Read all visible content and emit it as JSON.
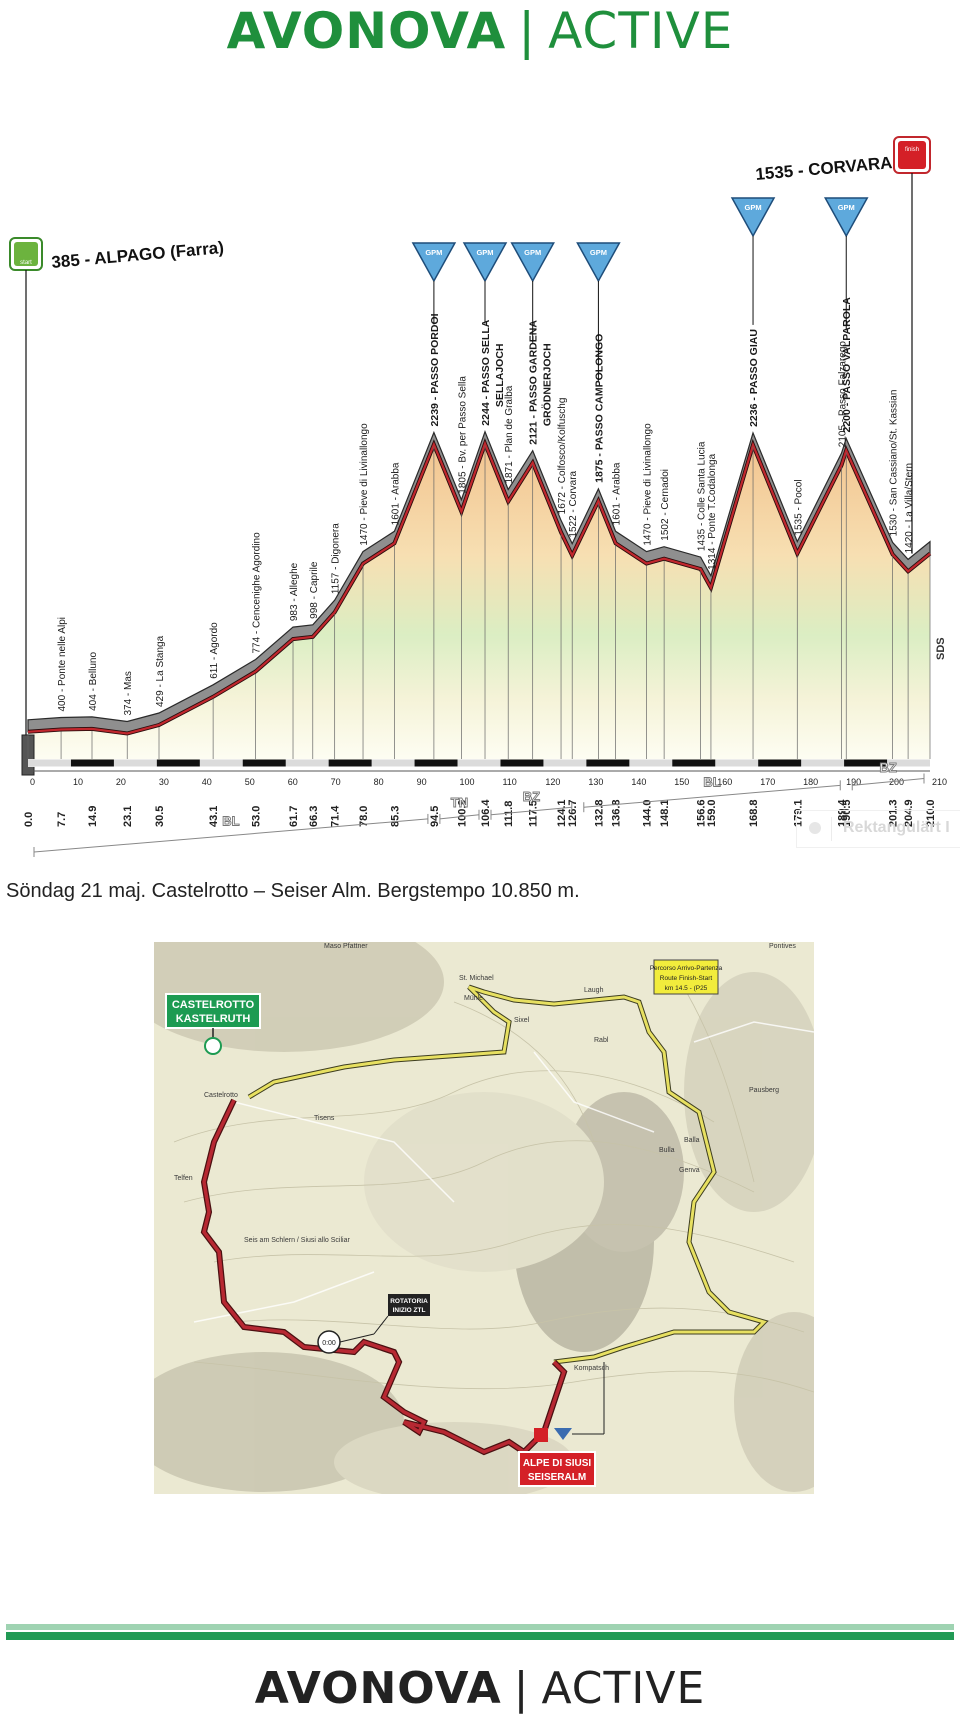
{
  "brand": {
    "name": "AVONOVA",
    "separator": "|",
    "tag": "ACTIVE"
  },
  "profile": {
    "start_label": "385 - ALPAGO (Farra)",
    "finish_label": "1535 - CORVARA",
    "start_badge": "start",
    "finish_badge": "finish",
    "side_label": "SDS",
    "kom_label": "GPM",
    "markers": [
      {
        "km": 0.0,
        "alt": 385,
        "name": "385 - ALPAGO (Farra)",
        "bold": true
      },
      {
        "km": 7.7,
        "alt": 400,
        "name": "400 - Ponte nelle Alpi",
        "bold": false
      },
      {
        "km": 14.9,
        "alt": 404,
        "name": "404 - Belluno",
        "bold": false
      },
      {
        "km": 23.1,
        "alt": 374,
        "name": "374 - Mas",
        "bold": false
      },
      {
        "km": 30.5,
        "alt": 429,
        "name": "429 - La Stanga",
        "bold": false
      },
      {
        "km": 43.1,
        "alt": 611,
        "name": "611 - Agordo",
        "bold": false
      },
      {
        "km": 53.0,
        "alt": 774,
        "name": "774 - Cencenighe Agordino",
        "bold": false
      },
      {
        "km": 61.7,
        "alt": 983,
        "name": "983 - Alleghe",
        "bold": false
      },
      {
        "km": 66.3,
        "alt": 998,
        "name": "998 - Caprile",
        "bold": false
      },
      {
        "km": 71.4,
        "alt": 1157,
        "name": "1157 - Digonera",
        "bold": false
      },
      {
        "km": 78.0,
        "alt": 1470,
        "name": "1470 - Pieve di Livinallongo",
        "bold": false
      },
      {
        "km": 85.3,
        "alt": 1601,
        "name": "1601 - Arabba",
        "bold": false
      },
      {
        "km": 94.5,
        "alt": 2239,
        "name": "2239 - PASSO PORDOI",
        "bold": true
      },
      {
        "km": 100.9,
        "alt": 1805,
        "name": "1805 - Bv. per Passo Sella",
        "bold": false
      },
      {
        "km": 106.4,
        "alt": 2244,
        "name": "2244 - PASSO SELLA",
        "bold": true
      },
      {
        "km": 106.4,
        "alt": null,
        "name": "SELLAJOCH",
        "bold": true
      },
      {
        "km": 111.8,
        "alt": 1871,
        "name": "1871 - Plan de Gralba",
        "bold": false
      },
      {
        "km": 117.5,
        "alt": 2121,
        "name": "2121 - PASSO GARDENA",
        "bold": true
      },
      {
        "km": 117.5,
        "alt": null,
        "name": "GRÖDNERJOCH",
        "bold": true
      },
      {
        "km": 124.1,
        "alt": 1672,
        "name": "1672 - Colfosco/Kolfuschg",
        "bold": false
      },
      {
        "km": 126.7,
        "alt": 1522,
        "name": "1522 - Corvara",
        "bold": false
      },
      {
        "km": 132.8,
        "alt": 1875,
        "name": "1875 - PASSO CAMPOLONGO",
        "bold": true
      },
      {
        "km": 136.8,
        "alt": 1601,
        "name": "1601 - Arabba",
        "bold": false
      },
      {
        "km": 144.0,
        "alt": 1470,
        "name": "1470 - Pieve di Livinallongo",
        "bold": false
      },
      {
        "km": 148.1,
        "alt": 1502,
        "name": "1502 - Cernadoi",
        "bold": false
      },
      {
        "km": 156.6,
        "alt": 1435,
        "name": "1435 - Colle Santa Lucia",
        "bold": false
      },
      {
        "km": 159.0,
        "alt": 1314,
        "name": "1314 - Ponte T.Codalonga",
        "bold": false
      },
      {
        "km": 168.8,
        "alt": 2236,
        "name": "2236 - PASSO GIAU",
        "bold": true
      },
      {
        "km": 179.1,
        "alt": 1535,
        "name": "1535 - Pocol",
        "bold": false
      },
      {
        "km": 189.4,
        "alt": 2105,
        "name": "2105 - Passo Falzarego",
        "bold": false
      },
      {
        "km": 190.5,
        "alt": 2200,
        "name": "2200 - PASSO VALPAROLA",
        "bold": true
      },
      {
        "km": 201.3,
        "alt": 1530,
        "name": "1530 - San Cassiano/St. Kassian",
        "bold": false
      },
      {
        "km": 204.9,
        "alt": 1420,
        "name": "1420 - La Villa/Stern",
        "bold": false
      },
      {
        "km": 210.0,
        "alt": 1535,
        "name": "1535 - CORVARA",
        "bold": true
      }
    ],
    "km_labels": [
      "0.0",
      "7.7",
      "14.9",
      "23.1",
      "30.5",
      "43.1",
      "53.0",
      "61.7",
      "66.3",
      "71.4",
      "78.0",
      "85.3",
      "94.5",
      "100.9",
      "106.4",
      "111.8",
      "117.5",
      "124.1",
      "126.7",
      "132.8",
      "136.8",
      "144.0",
      "148.1",
      "156.6",
      "159.0",
      "168.8",
      "179.1",
      "189.4",
      "190.5",
      "201.3",
      "204.9",
      "210.0"
    ],
    "km_ticks": [
      "0",
      "10",
      "20",
      "30",
      "40",
      "50",
      "60",
      "70",
      "80",
      "90",
      "100",
      "110",
      "120",
      "130",
      "140",
      "150",
      "160",
      "170",
      "180",
      "190",
      "200",
      "210"
    ],
    "provinces": [
      {
        "from": 0,
        "to": 94.5,
        "label": "BL"
      },
      {
        "from": 94.5,
        "to": 106.4,
        "label": "TN"
      },
      {
        "from": 106.4,
        "to": 128,
        "label": "BZ"
      },
      {
        "from": 128,
        "to": 190.5,
        "label": "BL"
      },
      {
        "from": 190.5,
        "to": 210,
        "label": "BZ"
      }
    ],
    "kom_kms": [
      94.5,
      106.4,
      117.5,
      132.8,
      168.8,
      190.5
    ]
  },
  "caption": "Söndag 21 maj. Castelrotto – Seiser Alm. Bergstempo 10.850 m.",
  "watermark": "Rektangulärt I",
  "map": {
    "start_label_1": "CASTELROTTO",
    "start_label_2": "KASTELRUTH",
    "finish_label_1": "ALPE DI SIUSI",
    "finish_label_2": "SEISERALM",
    "info_1": "Percorso Arrivo-Partenza",
    "info_2": "Route Finish-Start",
    "info_3": "km 14.5 - (P25",
    "rotatoria_1": "ROTATORIA",
    "rotatoria_2": "INIZIO ZTL",
    "time_label": "0:00",
    "places": [
      "Maso Pfattner",
      "St. Michael",
      "Mühle",
      "Laugh",
      "Sixel",
      "Rabl",
      "Pontives",
      "Pausberg",
      "Balla",
      "Bulla",
      "Genva",
      "Castelrotto",
      "Tisens",
      "Telfen",
      "Seis am Schlern / Siusi allo Sciliar",
      "Kompatsch"
    ]
  }
}
